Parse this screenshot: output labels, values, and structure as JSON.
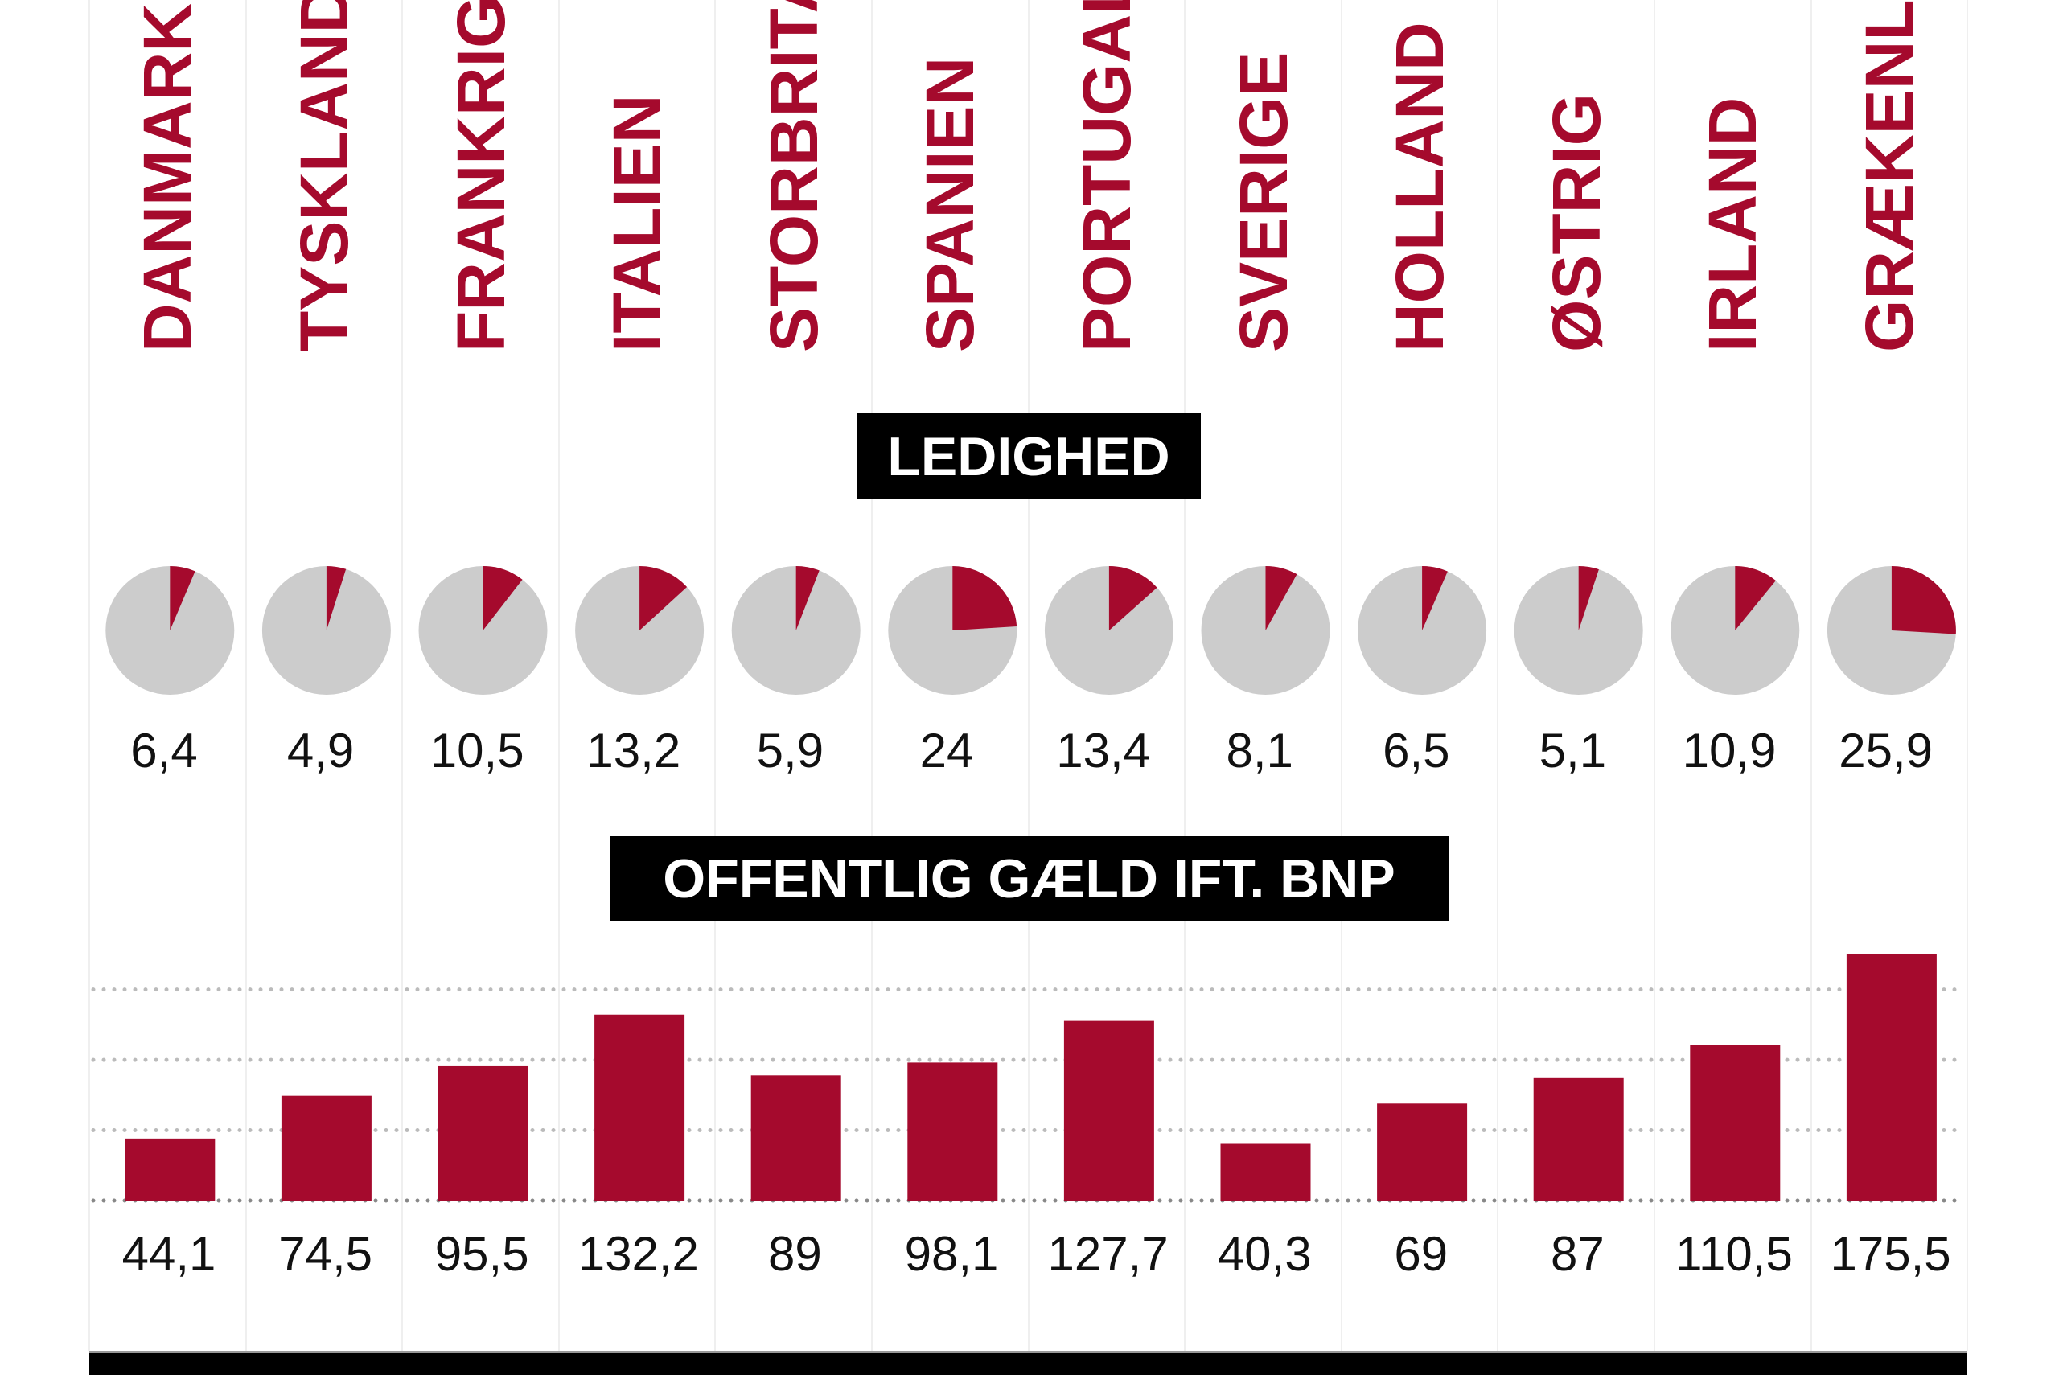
{
  "colors": {
    "accent": "#a50a2d",
    "pie_background": "#cccccc",
    "grid": "#bbbbbb"
  },
  "countries": [
    "DANMARK",
    "TYSKLAND",
    "FRANKRIG",
    "ITALIEN",
    "STORBRITANNIEN",
    "SPANIEN",
    "PORTUGAL",
    "SVERIGE",
    "HOLLAND",
    "ØSTRIG",
    "IRLAND",
    "GRÆKENLAND"
  ],
  "chart_data": [
    {
      "type": "pie",
      "title": "LEDIGHED",
      "categories": [
        "DANMARK",
        "TYSKLAND",
        "FRANKRIG",
        "ITALIEN",
        "STORBRITANNIEN",
        "SPANIEN",
        "PORTUGAL",
        "SVERIGE",
        "HOLLAND",
        "ØSTRIG",
        "IRLAND",
        "GRÆKENLAND"
      ],
      "values": [
        6.4,
        4.9,
        10.5,
        13.2,
        5.9,
        24,
        13.4,
        8.1,
        6.5,
        5.1,
        10.9,
        25.9
      ],
      "labels": [
        "6,4",
        "4,9",
        "10,5",
        "13,2",
        "5,9",
        "24",
        "13,4",
        "8,1",
        "6,5",
        "5,1",
        "10,9",
        "25,9"
      ],
      "scale_max": 100
    },
    {
      "type": "bar",
      "title": "OFFENTLIG GÆLD IFT. BNP",
      "categories": [
        "DANMARK",
        "TYSKLAND",
        "FRANKRIG",
        "ITALIEN",
        "STORBRITANNIEN",
        "SPANIEN",
        "PORTUGAL",
        "SVERIGE",
        "HOLLAND",
        "ØSTRIG",
        "IRLAND",
        "GRÆKENLAND"
      ],
      "values": [
        44.1,
        74.5,
        95.5,
        132.2,
        89,
        98.1,
        127.7,
        40.3,
        69,
        87,
        110.5,
        175.5
      ],
      "labels": [
        "44,1",
        "74,5",
        "95,5",
        "132,2",
        "89",
        "98,1",
        "127,7",
        "40,3",
        "69",
        "87",
        "110,5",
        "175,5"
      ],
      "gridlines": [
        0,
        50,
        100,
        150
      ],
      "grid": true
    }
  ]
}
